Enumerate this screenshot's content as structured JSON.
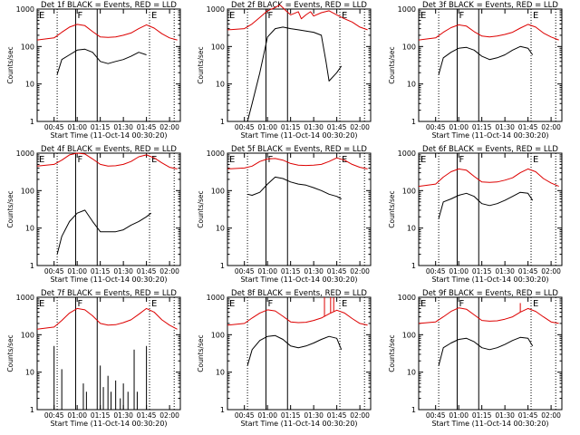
{
  "figure": {
    "xlabel": "Start Time (11-Oct-14 00:30:20)",
    "ylabel": "Counts/sec",
    "x_tick_labels": [
      "00:45",
      "01:00",
      "01:15",
      "01:30",
      "01:45",
      "02:00"
    ],
    "y_tick_labels": [
      "1",
      "10",
      "100",
      "1000"
    ],
    "region_labels": [
      "E",
      "F",
      "E"
    ]
  },
  "colors": {
    "events": "#000000",
    "lld": "#dd0000"
  },
  "chart_data": [
    {
      "type": "line",
      "title": "Det 1f BLACK = Events, RED = LLD",
      "x_format": "HH:MM",
      "xlim": [
        "00:34",
        "02:07"
      ],
      "ylim": [
        1,
        1000
      ],
      "y_scale": "log",
      "vlines_dotted": [
        "00:47",
        "01:47",
        "02:03"
      ],
      "vlines_solid": [
        "00:59",
        "01:13"
      ],
      "series": [
        {
          "name": "Events",
          "color": "#000000",
          "x": [
            "00:47",
            "00:50",
            "00:55",
            "01:00",
            "01:05",
            "01:10",
            "01:15",
            "01:20",
            "01:25",
            "01:30",
            "01:35",
            "01:40",
            "01:45"
          ],
          "y": [
            18,
            45,
            60,
            80,
            85,
            70,
            40,
            35,
            40,
            45,
            55,
            70,
            60
          ],
          "spikes": []
        },
        {
          "name": "LLD",
          "color": "#dd0000",
          "x": [
            "00:34",
            "00:45",
            "00:50",
            "00:55",
            "01:00",
            "01:05",
            "01:10",
            "01:15",
            "01:20",
            "01:25",
            "01:30",
            "01:35",
            "01:40",
            "01:45",
            "01:50",
            "01:55",
            "02:00",
            "02:05"
          ],
          "y": [
            150,
            170,
            240,
            330,
            390,
            360,
            250,
            180,
            175,
            180,
            200,
            230,
            300,
            380,
            310,
            220,
            170,
            150
          ],
          "spikes": []
        }
      ]
    },
    {
      "type": "line",
      "title": "Det 2f BLACK = Events, RED = LLD",
      "x_format": "HH:MM",
      "xlim": [
        "00:34",
        "02:07"
      ],
      "ylim": [
        1,
        1000
      ],
      "y_scale": "log",
      "vlines_dotted": [
        "00:47",
        "01:47",
        "02:03"
      ],
      "vlines_solid": [
        "00:59",
        "01:13"
      ],
      "series": [
        {
          "name": "Events",
          "color": "#000000",
          "x": [
            "00:47",
            "00:50",
            "00:55",
            "01:00",
            "01:05",
            "01:10",
            "01:15",
            "01:20",
            "01:25",
            "01:30",
            "01:35",
            "01:38",
            "01:40",
            "01:45",
            "01:48"
          ],
          "y": [
            1,
            3,
            20,
            180,
            300,
            330,
            300,
            280,
            260,
            240,
            200,
            40,
            12,
            20,
            30
          ],
          "spikes": []
        },
        {
          "name": "LLD",
          "color": "#dd0000",
          "x": [
            "00:34",
            "00:45",
            "00:50",
            "00:55",
            "01:00",
            "01:05",
            "01:08",
            "01:12",
            "01:15",
            "01:20",
            "01:22",
            "01:25",
            "01:28",
            "01:30",
            "01:35",
            "01:40",
            "01:45",
            "01:50",
            "01:55",
            "02:00",
            "02:05"
          ],
          "y": [
            280,
            300,
            400,
            600,
            900,
            1100,
            1300,
            900,
            700,
            850,
            550,
            700,
            850,
            650,
            800,
            900,
            700,
            550,
            450,
            330,
            280
          ],
          "spikes": []
        }
      ]
    },
    {
      "type": "line",
      "title": "Det 3f BLACK = Events, RED = LLD",
      "x_format": "HH:MM",
      "xlim": [
        "00:34",
        "02:07"
      ],
      "ylim": [
        1,
        1000
      ],
      "y_scale": "log",
      "vlines_dotted": [
        "00:47",
        "01:47",
        "02:03"
      ],
      "vlines_solid": [
        "00:59",
        "01:13"
      ],
      "series": [
        {
          "name": "Events",
          "color": "#000000",
          "x": [
            "00:47",
            "00:50",
            "00:55",
            "01:00",
            "01:05",
            "01:10",
            "01:15",
            "01:20",
            "01:25",
            "01:30",
            "01:35",
            "01:40",
            "01:45",
            "01:48"
          ],
          "y": [
            18,
            50,
            70,
            90,
            95,
            80,
            55,
            45,
            50,
            60,
            80,
            100,
            90,
            60
          ],
          "spikes": []
        },
        {
          "name": "LLD",
          "color": "#dd0000",
          "x": [
            "00:34",
            "00:45",
            "00:50",
            "00:55",
            "01:00",
            "01:05",
            "01:10",
            "01:15",
            "01:20",
            "01:25",
            "01:30",
            "01:35",
            "01:40",
            "01:45",
            "01:50",
            "01:55",
            "02:00",
            "02:05"
          ],
          "y": [
            150,
            170,
            240,
            320,
            380,
            350,
            250,
            190,
            180,
            190,
            210,
            240,
            310,
            390,
            330,
            230,
            180,
            150
          ],
          "spikes": []
        }
      ]
    },
    {
      "type": "line",
      "title": "Det 4f BLACK = Events, RED = LLD",
      "x_format": "HH:MM",
      "xlim": [
        "00:34",
        "02:07"
      ],
      "ylim": [
        1,
        1000
      ],
      "y_scale": "log",
      "vlines_dotted": [
        "00:47",
        "01:47",
        "02:03"
      ],
      "vlines_solid": [
        "00:59",
        "01:13"
      ],
      "series": [
        {
          "name": "Events",
          "color": "#000000",
          "x": [
            "00:47",
            "00:50",
            "00:55",
            "01:00",
            "01:05",
            "01:10",
            "01:15",
            "01:20",
            "01:25",
            "01:30",
            "01:35",
            "01:40",
            "01:45",
            "01:48"
          ],
          "y": [
            2,
            6,
            15,
            25,
            30,
            15,
            8,
            8,
            8,
            9,
            12,
            15,
            20,
            25
          ],
          "spikes": []
        },
        {
          "name": "LLD",
          "color": "#dd0000",
          "x": [
            "00:34",
            "00:45",
            "00:50",
            "00:55",
            "01:00",
            "01:05",
            "01:10",
            "01:15",
            "01:20",
            "01:25",
            "01:30",
            "01:35",
            "01:40",
            "01:45",
            "01:50",
            "01:55",
            "02:00",
            "02:05"
          ],
          "y": [
            450,
            500,
            650,
            900,
            1000,
            950,
            700,
            500,
            450,
            460,
            500,
            600,
            800,
            900,
            750,
            550,
            420,
            380
          ],
          "spikes": []
        }
      ]
    },
    {
      "type": "line",
      "title": "Det 5f BLACK = Events, RED = LLD",
      "x_format": "HH:MM",
      "xlim": [
        "00:34",
        "02:07"
      ],
      "ylim": [
        1,
        1000
      ],
      "y_scale": "log",
      "vlines_dotted": [
        "00:47",
        "01:47",
        "02:03"
      ],
      "vlines_solid": [
        "00:59",
        "01:13"
      ],
      "series": [
        {
          "name": "Events",
          "color": "#000000",
          "x": [
            "00:47",
            "00:50",
            "00:55",
            "01:00",
            "01:05",
            "01:10",
            "01:15",
            "01:20",
            "01:25",
            "01:30",
            "01:35",
            "01:40",
            "01:45",
            "01:48"
          ],
          "y": [
            80,
            75,
            90,
            150,
            230,
            210,
            170,
            150,
            140,
            120,
            100,
            80,
            70,
            60
          ],
          "spikes": []
        },
        {
          "name": "LLD",
          "color": "#dd0000",
          "x": [
            "00:34",
            "00:45",
            "00:50",
            "00:55",
            "01:00",
            "01:05",
            "01:10",
            "01:15",
            "01:20",
            "01:25",
            "01:30",
            "01:35",
            "01:40",
            "01:45",
            "01:50",
            "01:55",
            "02:00",
            "02:05"
          ],
          "y": [
            380,
            400,
            450,
            600,
            700,
            720,
            650,
            530,
            480,
            470,
            480,
            500,
            600,
            750,
            650,
            500,
            420,
            380
          ],
          "spikes": []
        }
      ]
    },
    {
      "type": "line",
      "title": "Det 6f BLACK = Events, RED = LLD",
      "x_format": "HH:MM",
      "xlim": [
        "00:34",
        "02:07"
      ],
      "ylim": [
        1,
        1000
      ],
      "y_scale": "log",
      "vlines_dotted": [
        "00:47",
        "01:47",
        "02:03"
      ],
      "vlines_solid": [
        "00:59",
        "01:13"
      ],
      "series": [
        {
          "name": "Events",
          "color": "#000000",
          "x": [
            "00:47",
            "00:50",
            "00:55",
            "01:00",
            "01:05",
            "01:10",
            "01:15",
            "01:20",
            "01:25",
            "01:30",
            "01:35",
            "01:40",
            "01:45",
            "01:48"
          ],
          "y": [
            18,
            50,
            60,
            75,
            85,
            70,
            45,
            40,
            45,
            55,
            70,
            90,
            85,
            55
          ],
          "spikes": []
        },
        {
          "name": "LLD",
          "color": "#dd0000",
          "x": [
            "00:34",
            "00:45",
            "00:50",
            "00:55",
            "01:00",
            "01:05",
            "01:10",
            "01:15",
            "01:20",
            "01:25",
            "01:30",
            "01:35",
            "01:40",
            "01:45",
            "01:50",
            "01:55",
            "02:00",
            "02:05"
          ],
          "y": [
            130,
            150,
            230,
            320,
            380,
            350,
            240,
            170,
            165,
            170,
            190,
            220,
            300,
            380,
            320,
            210,
            160,
            130
          ],
          "spikes": []
        }
      ]
    },
    {
      "type": "line",
      "title": "Det 7f BLACK = Events, RED = LLD",
      "x_format": "HH:MM",
      "xlim": [
        "00:34",
        "02:07"
      ],
      "ylim": [
        1,
        1000
      ],
      "y_scale": "log",
      "vlines_dotted": [
        "00:47",
        "01:47",
        "02:03"
      ],
      "vlines_solid": [
        "00:59",
        "01:13"
      ],
      "series": [
        {
          "name": "Events",
          "color": "#000000",
          "x": [],
          "y": [],
          "spikes": [
            [
              "00:45",
              50
            ],
            [
              "00:50",
              12
            ],
            [
              "01:04",
              5
            ],
            [
              "01:06",
              3
            ],
            [
              "01:15",
              15
            ],
            [
              "01:17",
              4
            ],
            [
              "01:20",
              8
            ],
            [
              "01:22",
              3
            ],
            [
              "01:25",
              6
            ],
            [
              "01:28",
              2
            ],
            [
              "01:30",
              5
            ],
            [
              "01:33",
              3
            ],
            [
              "01:37",
              40
            ],
            [
              "01:39",
              3
            ],
            [
              "01:45",
              50
            ]
          ]
        },
        {
          "name": "LLD",
          "color": "#dd0000",
          "x": [
            "00:34",
            "00:45",
            "00:50",
            "00:55",
            "01:00",
            "01:05",
            "01:10",
            "01:15",
            "01:20",
            "01:25",
            "01:30",
            "01:35",
            "01:40",
            "01:45",
            "01:50",
            "01:55",
            "02:00",
            "02:05"
          ],
          "y": [
            140,
            160,
            240,
            380,
            500,
            460,
            320,
            200,
            180,
            185,
            210,
            250,
            350,
            500,
            400,
            250,
            180,
            140
          ],
          "spikes": []
        }
      ]
    },
    {
      "type": "line",
      "title": "Det 8f BLACK = Events, RED = LLD",
      "x_format": "HH:MM",
      "xlim": [
        "00:34",
        "02:07"
      ],
      "ylim": [
        1,
        1000
      ],
      "y_scale": "log",
      "vlines_dotted": [
        "00:47",
        "01:47",
        "02:03"
      ],
      "vlines_solid": [
        "00:59",
        "01:13"
      ],
      "series": [
        {
          "name": "Events",
          "color": "#000000",
          "x": [
            "00:47",
            "00:50",
            "00:55",
            "01:00",
            "01:05",
            "01:10",
            "01:15",
            "01:20",
            "01:25",
            "01:30",
            "01:35",
            "01:40",
            "01:45",
            "01:48"
          ],
          "y": [
            15,
            40,
            70,
            90,
            95,
            75,
            50,
            45,
            50,
            60,
            75,
            90,
            80,
            40
          ],
          "spikes": []
        },
        {
          "name": "LLD",
          "color": "#dd0000",
          "x": [
            "00:34",
            "00:45",
            "00:50",
            "00:55",
            "01:00",
            "01:05",
            "01:10",
            "01:15",
            "01:20",
            "01:25",
            "01:30",
            "01:35",
            "01:40",
            "01:45",
            "01:50",
            "01:55",
            "02:00",
            "02:05"
          ],
          "y": [
            180,
            200,
            280,
            380,
            460,
            430,
            310,
            220,
            210,
            215,
            240,
            280,
            360,
            450,
            380,
            270,
            200,
            180
          ],
          "spikes": [
            [
              "01:37",
              1000
            ],
            [
              "01:41",
              1000
            ],
            [
              "01:43",
              1000
            ]
          ]
        }
      ]
    },
    {
      "type": "line",
      "title": "Det 9f BLACK = Events, RED = LLD",
      "x_format": "HH:MM",
      "xlim": [
        "00:34",
        "02:07"
      ],
      "ylim": [
        1,
        1000
      ],
      "y_scale": "log",
      "vlines_dotted": [
        "00:47",
        "01:47",
        "02:03"
      ],
      "vlines_solid": [
        "00:59",
        "01:13"
      ],
      "series": [
        {
          "name": "Events",
          "color": "#000000",
          "x": [
            "00:47",
            "00:50",
            "00:55",
            "01:00",
            "01:05",
            "01:10",
            "01:15",
            "01:20",
            "01:25",
            "01:30",
            "01:35",
            "01:40",
            "01:45",
            "01:48"
          ],
          "y": [
            15,
            45,
            60,
            75,
            80,
            65,
            45,
            40,
            45,
            55,
            70,
            85,
            80,
            50
          ],
          "spikes": []
        },
        {
          "name": "LLD",
          "color": "#dd0000",
          "x": [
            "00:34",
            "00:45",
            "00:50",
            "00:55",
            "01:00",
            "01:05",
            "01:10",
            "01:15",
            "01:20",
            "01:25",
            "01:30",
            "01:35",
            "01:40",
            "01:45",
            "01:50",
            "01:55",
            "02:00",
            "02:05"
          ],
          "y": [
            200,
            220,
            300,
            420,
            520,
            480,
            340,
            240,
            230,
            235,
            260,
            300,
            400,
            500,
            420,
            300,
            220,
            200
          ],
          "spikes": [
            [
              "01:40",
              700
            ]
          ]
        }
      ]
    }
  ]
}
